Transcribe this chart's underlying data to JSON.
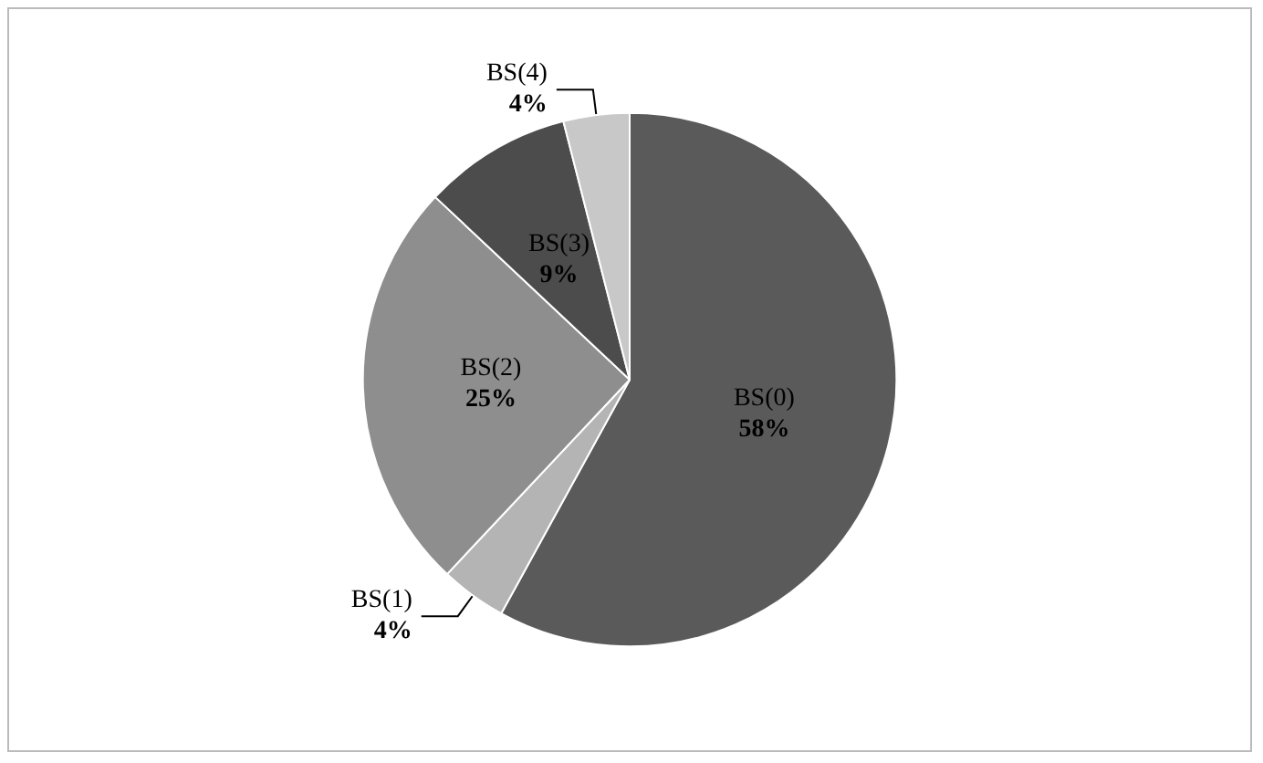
{
  "chart_data": {
    "type": "pie",
    "categories": [
      "BS(0)",
      "BS(1)",
      "BS(2)",
      "BS(3)",
      "BS(4)"
    ],
    "values": [
      58,
      4,
      25,
      9,
      4
    ],
    "value_labels": [
      "58%",
      "4%",
      "25%",
      "9%",
      "4%"
    ],
    "colors": [
      "#5a5a5a",
      "#b4b4b4",
      "#8e8e8e",
      "#4c4c4c",
      "#c8c8c8"
    ]
  }
}
